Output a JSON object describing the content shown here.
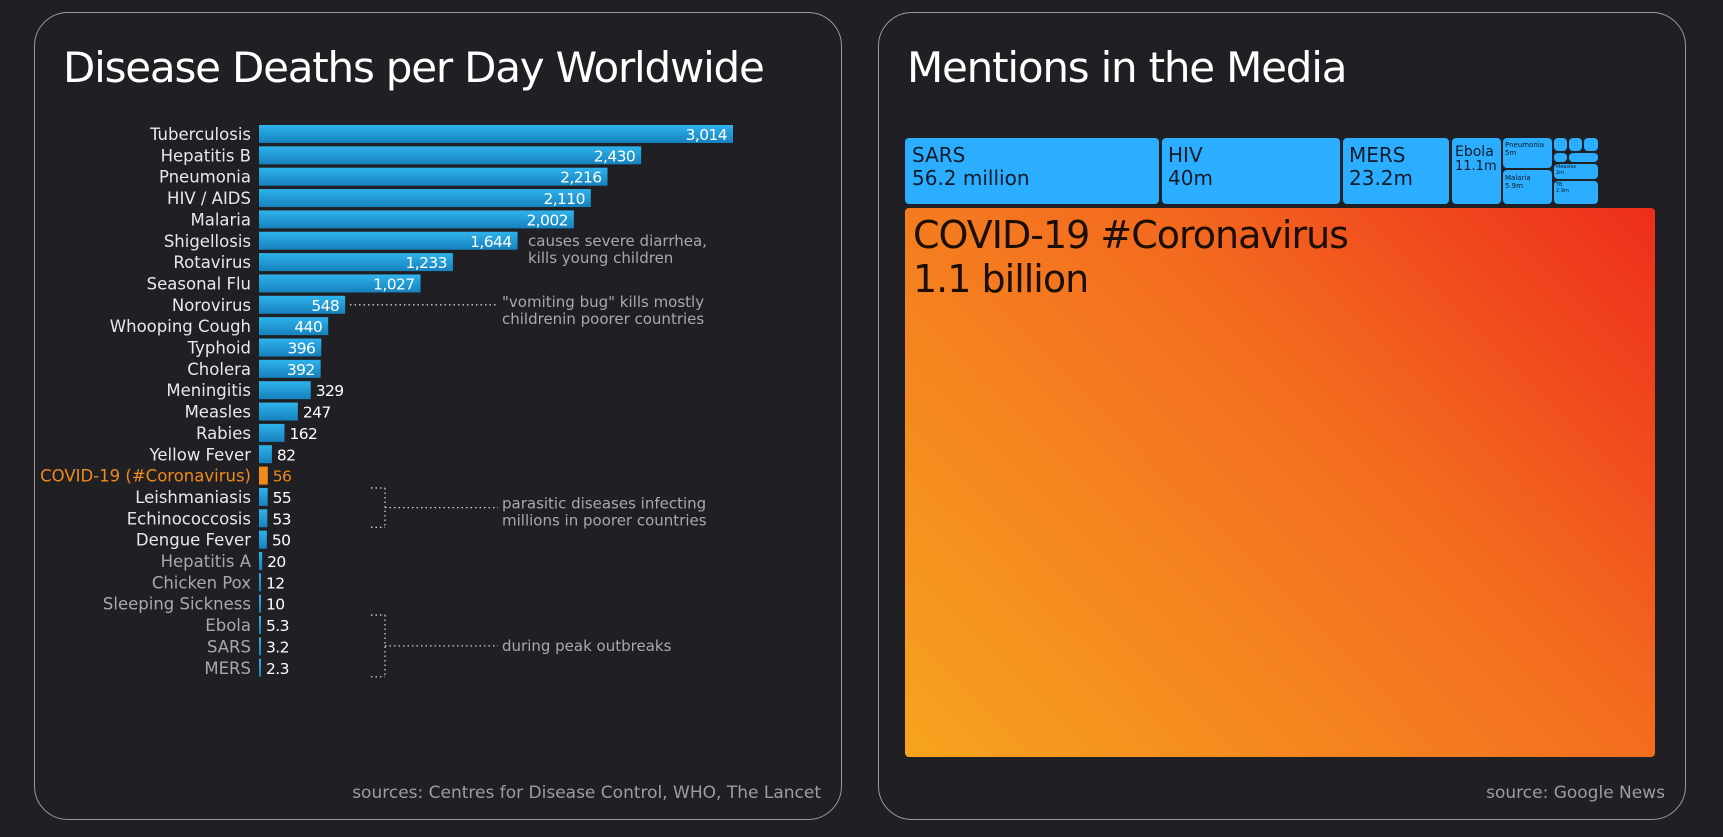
{
  "left_panel": {
    "title": "Disease Deaths per Day Worldwide",
    "source": "sources: Centres for Disease Control, WHO, The Lancet"
  },
  "right_panel": {
    "title": "Mentions in the Media",
    "source": "source: Google News"
  },
  "colors": {
    "bar": "#1d9bd6",
    "bar_highlight": "#f08a1c",
    "label": "#e8e8ea",
    "label_dim": "#a9a8ae",
    "annotation": "#a9a8ae",
    "tile_blue": "#2baeff"
  },
  "chart_data": [
    {
      "type": "bar",
      "orientation": "horizontal",
      "title": "Disease Deaths per Day Worldwide",
      "xlabel": "",
      "ylabel": "",
      "xlim": [
        0,
        3014
      ],
      "highlight": "COVID-19 (#Coronavirus)",
      "categories": [
        "Tuberculosis",
        "Hepatitis B",
        "Pneumonia",
        "HIV / AIDS",
        "Malaria",
        "Shigellosis",
        "Rotavirus",
        "Seasonal Flu",
        "Norovirus",
        "Whooping Cough",
        "Typhoid",
        "Cholera",
        "Meningitis",
        "Measles",
        "Rabies",
        "Yellow Fever",
        "COVID-19 (#Coronavirus)",
        "Leishmaniasis",
        "Echinococcosis",
        "Dengue Fever",
        "Hepatitis A",
        "Chicken Pox",
        "Sleeping Sickness",
        "Ebola",
        "SARS",
        "MERS"
      ],
      "values": [
        3014,
        2430,
        2216,
        2110,
        2002,
        1644,
        1233,
        1027,
        548,
        440,
        396,
        392,
        329,
        247,
        162,
        82,
        56,
        55,
        53,
        50,
        20,
        12,
        10,
        5.3,
        3.2,
        2.3
      ],
      "value_labels": [
        "3,014",
        "2,430",
        "2,216",
        "2,110",
        "2,002",
        "1,644",
        "1,233",
        "1,027",
        "548",
        "440",
        "396",
        "392",
        "329",
        "247",
        "162",
        "82",
        "56",
        "55",
        "53",
        "50",
        "20",
        "12",
        "10",
        "5.3",
        "3.2",
        "2.3"
      ],
      "annotations": [
        {
          "category": "Shigellosis",
          "lines": [
            "causes severe diarrhea,",
            "kills young children"
          ]
        },
        {
          "category": "Norovirus",
          "lines": [
            "\"vomiting bug\" kills mostly",
            "childrenin poorer countries"
          ]
        },
        {
          "categories": [
            "Leishmaniasis",
            "Echinococcosis"
          ],
          "lines": [
            "parasitic diseases infecting",
            "millions in poorer countries"
          ]
        },
        {
          "categories": [
            "Ebola",
            "SARS",
            "MERS"
          ],
          "lines": [
            "during peak outbreaks"
          ]
        }
      ]
    },
    {
      "type": "treemap",
      "title": "Mentions in the Media",
      "items": [
        {
          "name": "COVID-19 #Coronavirus",
          "value_millions": 1100,
          "label": "1.1 billion"
        },
        {
          "name": "SARS",
          "value_millions": 56.2,
          "label": "56.2 million"
        },
        {
          "name": "HIV",
          "value_millions": 40,
          "label": "40m"
        },
        {
          "name": "MERS",
          "value_millions": 23.2,
          "label": "23.2m"
        },
        {
          "name": "Ebola",
          "value_millions": 11.1,
          "label": "11.1m"
        },
        {
          "name": "Pneumonia",
          "value_millions": 5,
          "label": "5m"
        },
        {
          "name": "Malaria",
          "value_millions": 5.9,
          "label": "5.9m"
        },
        {
          "name": "Measles",
          "value_millions": 2,
          "label": "2m"
        },
        {
          "name": "TB",
          "value_millions": 2.9,
          "label": "2.9m"
        }
      ]
    }
  ]
}
